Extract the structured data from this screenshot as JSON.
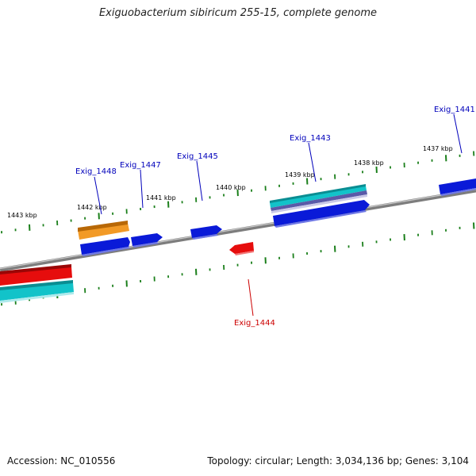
{
  "header": {
    "title": "Exiguobacterium sibiricum 255-15, complete genome"
  },
  "footer": {
    "accession": "Accession: NC_010556",
    "summary": "Topology: circular; Length: 3,034,136 bp; Genes: 3,104"
  },
  "colors": {
    "backbone": "#8a8a8a",
    "tick": "#1b7f1b",
    "label_forward": "#0000bb",
    "label_reverse": "#cc0000",
    "gene_blue": "#0a1ad8",
    "gene_red": "#e60d0d",
    "gene_orange": "#ef8a0e",
    "gene_cyan": "#12c3c9",
    "gene_slate": "#5a5aa8"
  },
  "kbp_labels": [
    "1443 kbp",
    "1442 kbp",
    "1441 kbp",
    "1440 kbp",
    "1439 kbp",
    "1438 kbp",
    "1437 kbp"
  ],
  "gene_labels": [
    {
      "text": "Exig_1448",
      "strand": "forward"
    },
    {
      "text": "Exig_1447",
      "strand": "forward"
    },
    {
      "text": "Exig_1445",
      "strand": "forward"
    },
    {
      "text": "Exig_1443",
      "strand": "forward"
    },
    {
      "text": "Exig_1441",
      "strand": "forward"
    },
    {
      "text": "Exig_1444",
      "strand": "reverse"
    }
  ]
}
